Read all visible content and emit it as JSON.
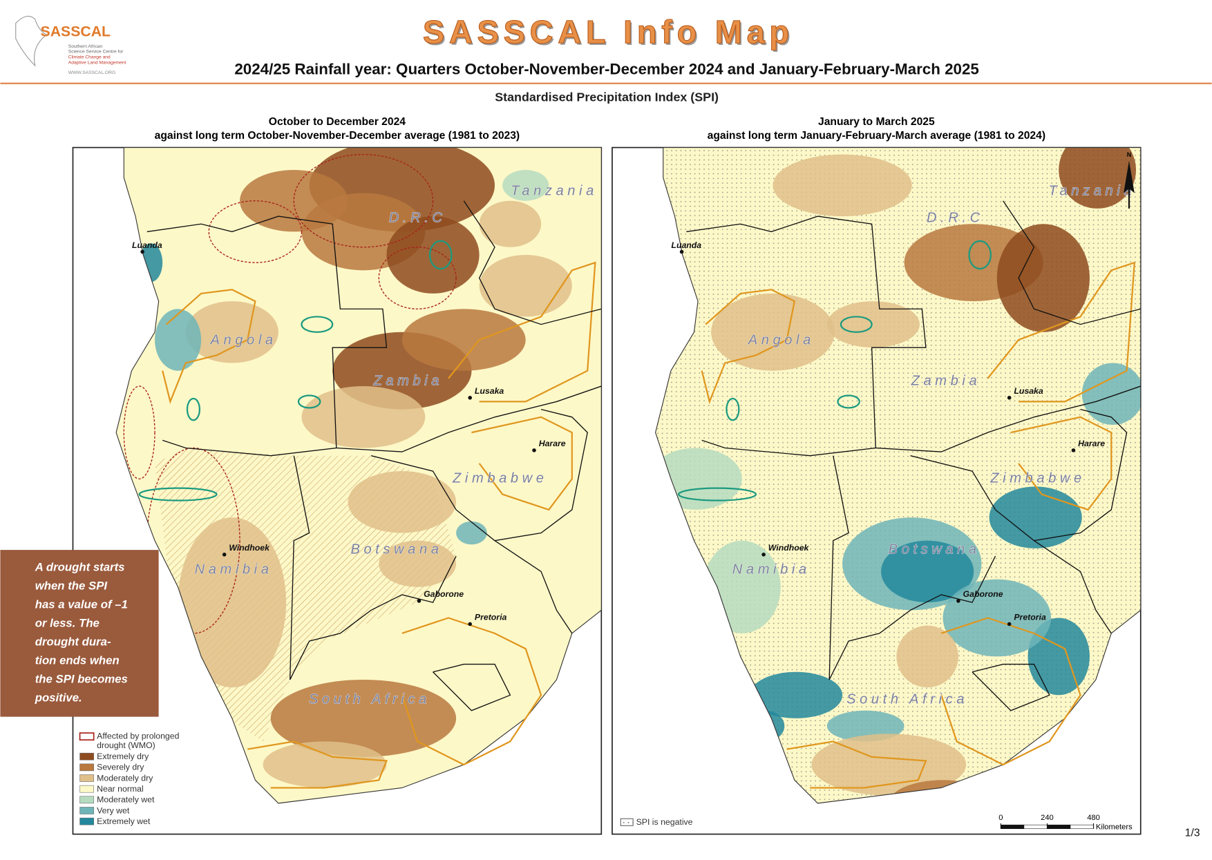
{
  "header": {
    "title": "SASSCAL Info Map",
    "logo": {
      "name": "SASSCAL",
      "tagline": [
        "Southern African",
        "Science Service Centre for",
        "Climate Change and",
        "Adaptive Land Management"
      ],
      "url": "WWW.SASSCAL.ORG"
    },
    "subtitle": "2024/25 Rainfall year: Quarters October-November-December 2024 and January-February-March 2025",
    "index_title": "Standardised Precipitation Index (SPI)"
  },
  "maps": [
    {
      "title": "October to December 2024",
      "subtitle": "against long term October-November-December average (1981 to 2023)",
      "countries": [
        "D.R.C",
        "Tanzania",
        "Angola",
        "Zambia",
        "Zimbabwe",
        "Botswana",
        "Namibia",
        "South Africa"
      ],
      "cities": [
        "Luanda",
        "Lusaka",
        "Harare",
        "Windhoek",
        "Gaborone",
        "Pretoria"
      ]
    },
    {
      "title": "January to March 2025",
      "subtitle": "against long term January-February-March average (1981 to 2024)",
      "countries": [
        "D.R.C",
        "Tanzania",
        "Angola",
        "Zambia",
        "Zimbabwe",
        "Botswana",
        "Namibia",
        "South Africa"
      ],
      "cities": [
        "Luanda",
        "Lusaka",
        "Harare",
        "Windhoek",
        "Gaborone",
        "Pretoria"
      ]
    }
  ],
  "legend": {
    "items": [
      {
        "label": "Affected by prolonged drought (WMO)",
        "color": "#a8201a"
      },
      {
        "label": "Extremely dry",
        "color": "#8e4b1f"
      },
      {
        "label": "Severely dry",
        "color": "#b9793f"
      },
      {
        "label": "Moderately dry",
        "color": "#e0c08a"
      },
      {
        "label": "Near normal",
        "color": "#fdf8c8"
      },
      {
        "label": "Moderately wet",
        "color": "#b6dcc0"
      },
      {
        "label": "Very wet",
        "color": "#6fb5b8"
      },
      {
        "label": "Extremely wet",
        "color": "#23889c"
      }
    ],
    "negative": "SPI is negative"
  },
  "note": [
    "A drought starts",
    "when the SPI",
    "has a value of –1",
    "or less. The",
    "drought dura-",
    "tion ends when",
    "the SPI becomes",
    "positive."
  ],
  "scale_bar": {
    "ticks": [
      0,
      240,
      480
    ],
    "unit": "Kilometers"
  },
  "north": "N",
  "page_number": "1/3"
}
